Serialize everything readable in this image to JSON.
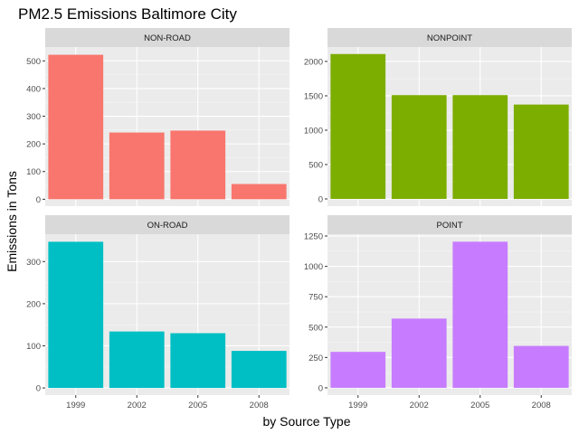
{
  "chart_data": {
    "type": "bar",
    "title": "PM2.5 Emissions Baltimore City",
    "xlabel": "by Source Type",
    "ylabel": "Emissions in Tons",
    "categories": [
      "1999",
      "2002",
      "2005",
      "2008"
    ],
    "grid": true,
    "legend": "none",
    "panels": [
      {
        "name": "NON-ROAD",
        "color": "#F8766D",
        "values": [
          522,
          241,
          248,
          55
        ],
        "ylim": [
          -25,
          550
        ],
        "yticks": [
          0,
          100,
          200,
          300,
          400,
          500
        ],
        "show_x_ticks": false
      },
      {
        "name": "NONPOINT",
        "color": "#7CAE00",
        "values": [
          2108,
          1510,
          1510,
          1373
        ],
        "ylim": [
          -105,
          2210
        ],
        "yticks": [
          0,
          500,
          1000,
          1500,
          2000
        ],
        "show_x_ticks": false
      },
      {
        "name": "ON-ROAD",
        "color": "#00BFC4",
        "values": [
          347,
          134,
          130,
          88
        ],
        "ylim": [
          -17,
          365
        ],
        "yticks": [
          0,
          100,
          200,
          300
        ],
        "show_x_ticks": true
      },
      {
        "name": "POINT",
        "color": "#C77CFF",
        "values": [
          296,
          570,
          1203,
          345
        ],
        "ylim": [
          -60,
          1265
        ],
        "yticks": [
          0,
          250,
          500,
          750,
          1000,
          1250
        ],
        "show_x_ticks": true
      }
    ]
  }
}
